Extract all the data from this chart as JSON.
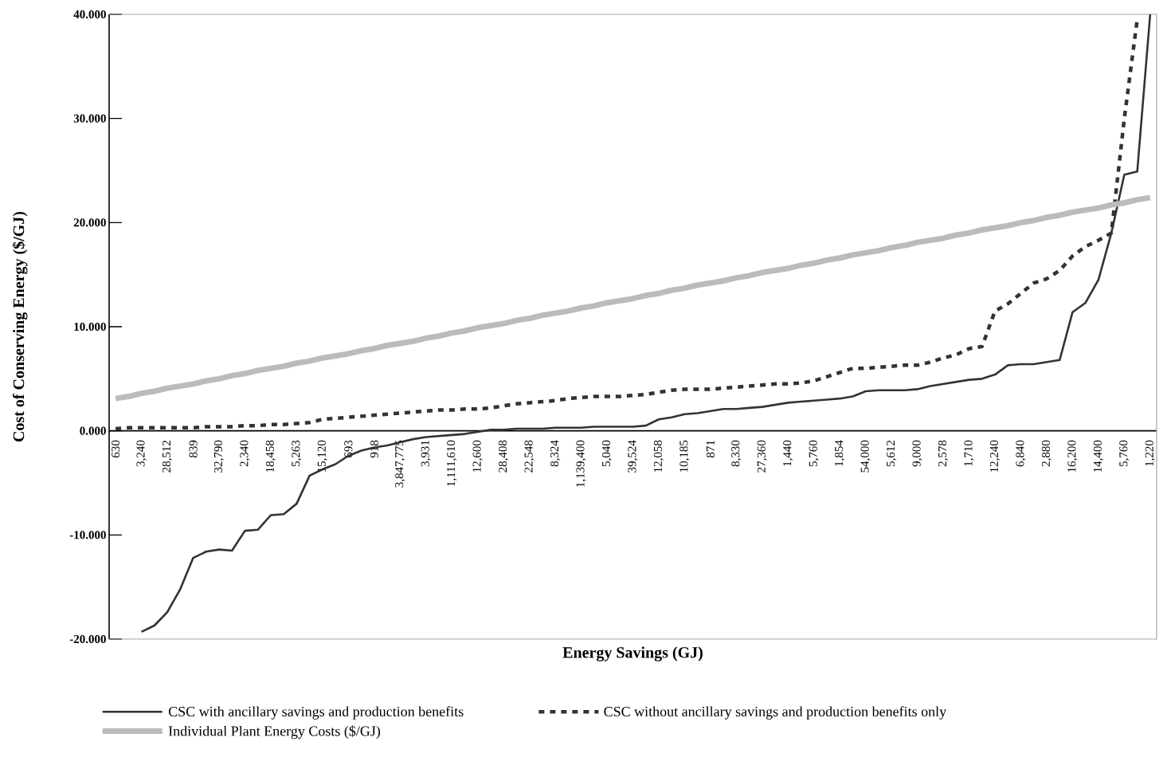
{
  "chart_data": {
    "type": "line",
    "xlabel": "Energy Savings (GJ)",
    "ylabel": "Cost of Conserving Energy ($/GJ)",
    "categories": [
      "630",
      null,
      "3,240",
      null,
      "28,512",
      null,
      "839",
      null,
      "32,790",
      null,
      "2,340",
      null,
      "18,458",
      null,
      "5,263",
      null,
      "15,120",
      null,
      "693",
      null,
      "918",
      null,
      "3,847,775",
      null,
      "3,931",
      null,
      "1,111,610",
      null,
      "12,600",
      null,
      "28,408",
      null,
      "22,548",
      null,
      "8,324",
      null,
      "1,139,400",
      null,
      "5,040",
      null,
      "39,524",
      null,
      "12,058",
      null,
      "10,185",
      null,
      "871",
      null,
      "8,330",
      null,
      "27,360",
      null,
      "1,440",
      null,
      "5,760",
      null,
      "1,854",
      null,
      "54,000",
      null,
      "5,612",
      null,
      "9,000",
      null,
      "2,578",
      null,
      "1,710",
      null,
      "12,240",
      null,
      "6,840",
      null,
      "2,880",
      null,
      "16,200",
      null,
      "14,400",
      null,
      "5,760",
      null,
      "1,220"
    ],
    "series": [
      {
        "name": "CSC with ancillary savings and production benefits",
        "color": "#333333",
        "line_style": "solid",
        "values": [
          null,
          null,
          -19.3,
          -18.7,
          -17.4,
          -15.2,
          -12.2,
          -11.6,
          -11.4,
          -11.5,
          -9.6,
          -9.5,
          -8.1,
          -8.0,
          -7.0,
          -4.3,
          -3.7,
          -3.2,
          -2.4,
          -1.9,
          -1.6,
          -1.4,
          -1.1,
          -0.8,
          -0.6,
          -0.5,
          -0.4,
          -0.3,
          -0.1,
          0.1,
          0.1,
          0.2,
          0.2,
          0.2,
          0.3,
          0.3,
          0.3,
          0.4,
          0.4,
          0.4,
          0.4,
          0.5,
          1.1,
          1.3,
          1.6,
          1.7,
          1.9,
          2.1,
          2.1,
          2.2,
          2.3,
          2.5,
          2.7,
          2.8,
          2.9,
          3.0,
          3.1,
          3.3,
          3.8,
          3.9,
          3.9,
          3.9,
          4.0,
          4.3,
          4.5,
          4.7,
          4.9,
          5.0,
          5.4,
          6.3,
          6.4,
          6.4,
          6.6,
          6.8,
          11.4,
          12.3,
          14.5,
          19.0,
          24.6,
          24.9,
          40
        ]
      },
      {
        "name": "CSC without ancillary savings and production benefits only",
        "color": "#333333",
        "line_style": "dashed",
        "values": [
          0.2,
          0.3,
          0.3,
          0.3,
          0.3,
          0.3,
          0.3,
          0.4,
          0.4,
          0.4,
          0.5,
          0.5,
          0.6,
          0.6,
          0.7,
          0.8,
          1.1,
          1.2,
          1.3,
          1.4,
          1.5,
          1.6,
          1.7,
          1.8,
          1.9,
          2.0,
          2.0,
          2.1,
          2.1,
          2.2,
          2.4,
          2.6,
          2.7,
          2.8,
          2.9,
          3.1,
          3.2,
          3.3,
          3.3,
          3.3,
          3.4,
          3.5,
          3.7,
          3.9,
          4.0,
          4.0,
          4.0,
          4.1,
          4.2,
          4.3,
          4.4,
          4.5,
          4.5,
          4.6,
          4.8,
          5.2,
          5.6,
          6.0,
          6.0,
          6.1,
          6.2,
          6.3,
          6.3,
          6.6,
          7.0,
          7.3,
          7.9,
          8.1,
          11.5,
          12.2,
          13.2,
          14.2,
          14.6,
          15.4,
          16.8,
          17.7,
          18.3,
          19.0,
          30.0,
          39.5,
          null
        ]
      },
      {
        "name": "Individual Plant Energy Costs ($/GJ)",
        "color": "#bbbbbb",
        "line_style": "solid",
        "values": [
          3.1,
          3.3,
          3.6,
          3.8,
          4.1,
          4.3,
          4.5,
          4.8,
          5.0,
          5.3,
          5.5,
          5.8,
          6.0,
          6.2,
          6.5,
          6.7,
          7.0,
          7.2,
          7.4,
          7.7,
          7.9,
          8.2,
          8.4,
          8.6,
          8.9,
          9.1,
          9.4,
          9.6,
          9.9,
          10.1,
          10.3,
          10.6,
          10.8,
          11.1,
          11.3,
          11.5,
          11.8,
          12.0,
          12.3,
          12.5,
          12.7,
          13.0,
          13.2,
          13.5,
          13.7,
          14.0,
          14.2,
          14.4,
          14.7,
          14.9,
          15.2,
          15.4,
          15.6,
          15.9,
          16.1,
          16.4,
          16.6,
          16.9,
          17.1,
          17.3,
          17.6,
          17.8,
          18.1,
          18.3,
          18.5,
          18.8,
          19.0,
          19.3,
          19.5,
          19.7,
          20.0,
          20.2,
          20.5,
          20.7,
          21.0,
          21.2,
          21.4,
          21.7,
          21.9,
          22.2,
          22.4
        ]
      }
    ],
    "ylim": [
      -20,
      40
    ],
    "yticks": [
      {
        "value": -20,
        "label": "-20.000"
      },
      {
        "value": -10,
        "label": "-10.000"
      },
      {
        "value": 0,
        "label": "0.000"
      },
      {
        "value": 10,
        "label": "10.000"
      },
      {
        "value": 20,
        "label": "20.000"
      },
      {
        "value": 30,
        "label": "30.000"
      },
      {
        "value": 40,
        "label": "40.000"
      }
    ],
    "legend": "bottom",
    "marker": "none"
  }
}
